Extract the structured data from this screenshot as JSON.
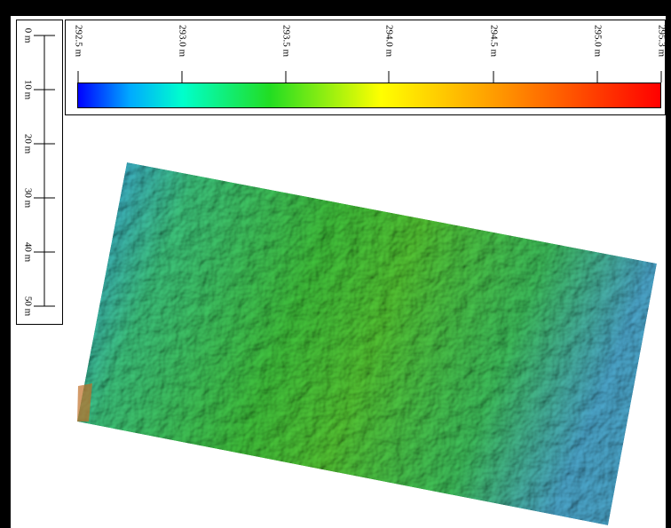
{
  "colorbar": {
    "ticks": [
      "292.5 m",
      "293.0 m",
      "293.5 m",
      "294.0 m",
      "294.5 m",
      "295.0 m",
      "295.3 m"
    ]
  },
  "scale_bar": {
    "ticks": [
      "0 m",
      "10 m",
      "20 m",
      "30 m",
      "40 m",
      "50 m"
    ]
  }
}
